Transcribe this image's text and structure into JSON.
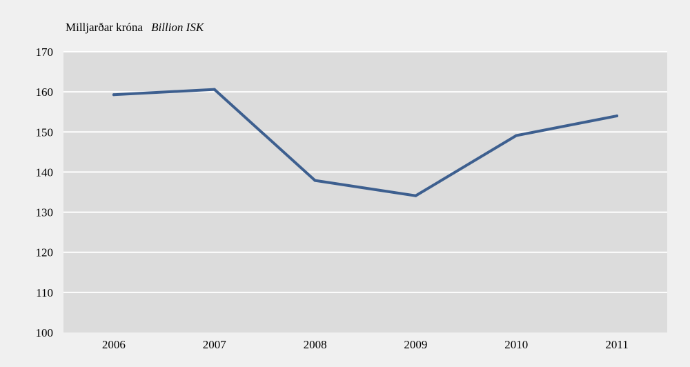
{
  "chart_data": {
    "type": "line",
    "ylabel": "Milljarðar króna",
    "ylabel_en": "Billion ISK",
    "categories": [
      "2006",
      "2007",
      "2008",
      "2009",
      "2010",
      "2011"
    ],
    "series": [
      {
        "values": [
          159.3,
          160.6,
          137.9,
          134.1,
          149.1,
          154.0
        ]
      }
    ],
    "ylim": [
      100,
      170
    ],
    "yticks": [
      100,
      110,
      120,
      130,
      140,
      150,
      160,
      170
    ],
    "grid": true,
    "legend": "none",
    "colors": {
      "plot_background": "#dcdcdc",
      "page_background": "#f0f0f0",
      "line": "#3d5f8f",
      "grid": "#ffffff"
    }
  }
}
